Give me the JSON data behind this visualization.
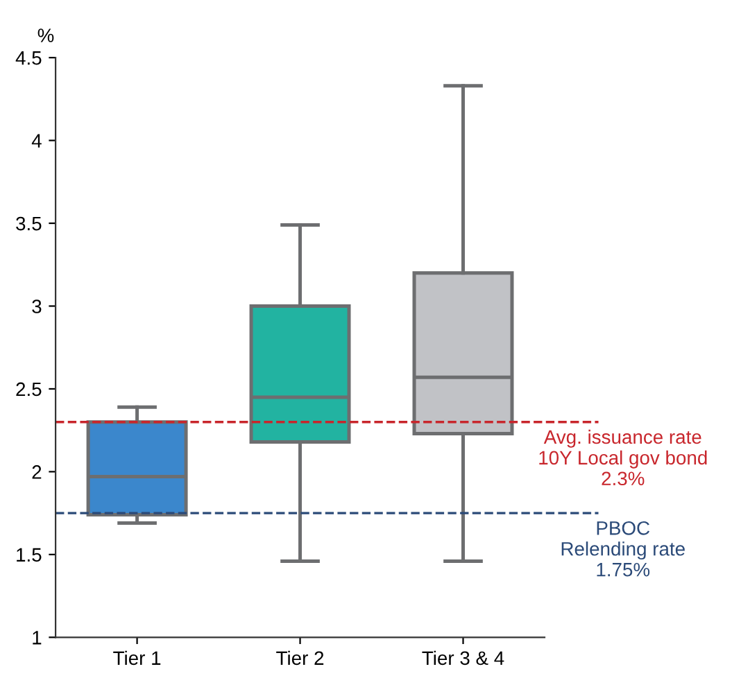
{
  "chart_data": {
    "type": "box",
    "ylabel": "%",
    "categories": [
      "Tier 1",
      "Tier 2",
      "Tier 3 & 4"
    ],
    "colors": [
      "#3b87cc",
      "#22b3a1",
      "#c1c2c6"
    ],
    "boxes": [
      {
        "low": 1.69,
        "q1": 1.74,
        "median": 1.97,
        "q3": 2.3,
        "high": 2.39
      },
      {
        "low": 1.46,
        "q1": 2.18,
        "median": 2.45,
        "q3": 3.0,
        "high": 3.49
      },
      {
        "low": 1.46,
        "q1": 2.23,
        "median": 2.57,
        "q3": 3.2,
        "high": 4.33
      }
    ],
    "ylim": [
      1,
      4.5
    ],
    "yticks": [
      1,
      1.5,
      2,
      2.5,
      3,
      3.5,
      4,
      4.5
    ],
    "grid": false,
    "legend": false,
    "ref_lines": [
      {
        "axis": "y",
        "value": 2.3,
        "label": "Avg. issuance rate\n10Y Local gov bond\n2.3%",
        "color": "#c8262c",
        "line_style": "dashed"
      },
      {
        "axis": "y",
        "value": 1.75,
        "label": "PBOC\nRelending rate\n1.75%",
        "color": "#2b4a78",
        "line_style": "dashed"
      }
    ]
  }
}
